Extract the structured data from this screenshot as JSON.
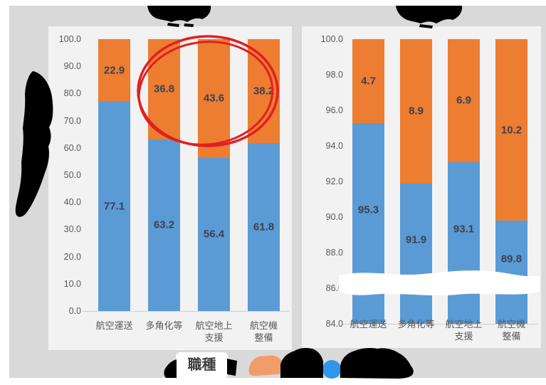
{
  "colors": {
    "bar_blue": "#5B9BD5",
    "bar_orange": "#ED7D31",
    "data_label": "#3A4151",
    "axis_text": "#595959",
    "annotation_red": "#E02020",
    "legend_orange": "#F19D69",
    "legend_blue": "#2E96EC",
    "panel_bg": "#F2F2F2",
    "backdrop": "#D9D9D9"
  },
  "legend": {
    "box_label": "職種",
    "series_labels_redacted": true
  },
  "chart_data": [
    {
      "type": "bar",
      "stacked": true,
      "title_redacted": true,
      "categories": [
        "航空運送",
        "多角化等",
        "航空地上\n支援",
        "航空機\n整備"
      ],
      "series": [
        {
          "name_redacted": true,
          "color_key": "bar_blue",
          "values": [
            77.1,
            63.2,
            56.4,
            61.8
          ]
        },
        {
          "name_redacted": true,
          "color_key": "bar_orange",
          "values": [
            22.9,
            36.8,
            43.6,
            38.2
          ]
        }
      ],
      "ylim": [
        0,
        100
      ],
      "ytick_step": 10,
      "grid": false,
      "legend_position": "bottom",
      "annotation": {
        "shape": "red-ellipse",
        "around_labels": [
          36.8,
          43.6,
          38.2
        ]
      }
    },
    {
      "type": "bar",
      "stacked": true,
      "title_redacted": true,
      "categories": [
        "航空運送",
        "多角化等",
        "航空地上\n支援",
        "航空機\n整備"
      ],
      "series": [
        {
          "name_redacted": true,
          "color_key": "bar_blue",
          "values": [
            95.3,
            91.9,
            93.1,
            89.8
          ]
        },
        {
          "name_redacted": true,
          "color_key": "bar_orange",
          "values": [
            4.7,
            8.9,
            6.9,
            10.2
          ]
        }
      ],
      "ylim": [
        84,
        100
      ],
      "ytick_step": 2,
      "grid": false,
      "legend_position": "bottom",
      "axis_break": true
    }
  ]
}
